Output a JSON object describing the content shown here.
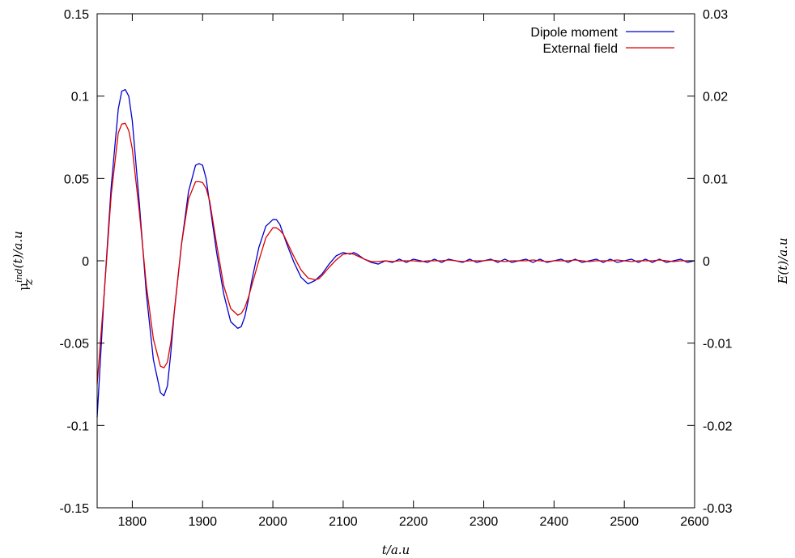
{
  "chart_data": {
    "type": "line",
    "title": "",
    "xlabel": "t/a.u",
    "ylabel": {
      "symbol": "μ",
      "sub": "z",
      "sup": "ind",
      "rest": "(t)/a.u"
    },
    "y2label": "E(t)/a.u",
    "xlim": [
      1750,
      2600
    ],
    "ylim": [
      -0.15,
      0.15
    ],
    "y2lim": [
      -0.03,
      0.03
    ],
    "xticks": [
      "1800",
      "1900",
      "2000",
      "2100",
      "2200",
      "2300",
      "2400",
      "2500",
      "2600"
    ],
    "yticks": [
      "-0.15",
      "-0.1",
      "-0.05",
      "0",
      "0.05",
      "0.1",
      "0.15"
    ],
    "y2ticks": [
      "-0.03",
      "-0.02",
      "-0.01",
      "0",
      "0.01",
      "0.02",
      "0.03"
    ],
    "grid": false,
    "legend_position": "top-right",
    "series": [
      {
        "name": "Dipole moment",
        "color": "#0000cc",
        "axis": "y",
        "x": [
          1750,
          1760,
          1770,
          1780,
          1785,
          1790,
          1795,
          1800,
          1810,
          1820,
          1830,
          1840,
          1845,
          1850,
          1855,
          1860,
          1870,
          1880,
          1890,
          1895,
          1900,
          1905,
          1910,
          1920,
          1930,
          1940,
          1950,
          1955,
          1960,
          1965,
          1970,
          1980,
          1990,
          2000,
          2005,
          2010,
          2015,
          2020,
          2030,
          2040,
          2050,
          2060,
          2065,
          2070,
          2080,
          2090,
          2100,
          2110,
          2115,
          2120,
          2130,
          2140,
          2150,
          2160,
          2170,
          2180,
          2190,
          2200,
          2210,
          2220,
          2230,
          2240,
          2250,
          2260,
          2270,
          2280,
          2290,
          2300,
          2310,
          2320,
          2330,
          2340,
          2350,
          2360,
          2370,
          2380,
          2390,
          2400,
          2410,
          2420,
          2430,
          2440,
          2450,
          2460,
          2470,
          2480,
          2490,
          2500,
          2510,
          2520,
          2530,
          2540,
          2550,
          2560,
          2570,
          2580,
          2590,
          2600
        ],
        "y": [
          -0.095,
          -0.02,
          0.045,
          0.092,
          0.103,
          0.104,
          0.1,
          0.085,
          0.035,
          -0.02,
          -0.06,
          -0.08,
          -0.082,
          -0.076,
          -0.055,
          -0.03,
          0.01,
          0.042,
          0.058,
          0.059,
          0.058,
          0.05,
          0.035,
          0.005,
          -0.02,
          -0.037,
          -0.041,
          -0.04,
          -0.034,
          -0.024,
          -0.012,
          0.008,
          0.021,
          0.025,
          0.025,
          0.022,
          0.016,
          0.01,
          -0.001,
          -0.01,
          -0.014,
          -0.012,
          -0.01,
          -0.008,
          -0.002,
          0.003,
          0.005,
          0.004,
          0.005,
          0.004,
          0.001,
          -0.001,
          -0.002,
          0.0,
          -0.001,
          0.001,
          -0.001,
          0.001,
          0.0,
          -0.001,
          0.001,
          -0.001,
          0.001,
          0.0,
          -0.001,
          0.001,
          -0.001,
          0.0,
          0.001,
          -0.001,
          0.001,
          -0.001,
          0.0,
          0.001,
          -0.001,
          0.001,
          -0.001,
          0.0,
          0.001,
          -0.001,
          0.001,
          -0.001,
          0.0,
          0.001,
          -0.001,
          0.001,
          -0.001,
          0.0,
          0.001,
          -0.001,
          0.001,
          -0.001,
          0.001,
          -0.001,
          0.0,
          0.001,
          -0.001,
          0.0
        ]
      },
      {
        "name": "External field",
        "color": "#dd0000",
        "axis": "y2",
        "x": [
          1750,
          1760,
          1770,
          1780,
          1785,
          1790,
          1795,
          1800,
          1810,
          1820,
          1830,
          1840,
          1845,
          1850,
          1855,
          1860,
          1870,
          1880,
          1890,
          1895,
          1900,
          1905,
          1910,
          1920,
          1930,
          1940,
          1950,
          1955,
          1960,
          1965,
          1970,
          1980,
          1990,
          2000,
          2005,
          2010,
          2015,
          2020,
          2030,
          2040,
          2050,
          2060,
          2065,
          2070,
          2080,
          2090,
          2100,
          2110,
          2115,
          2120,
          2130,
          2140,
          2150,
          2160,
          2170,
          2180,
          2190,
          2200,
          2210,
          2220,
          2230,
          2240,
          2250,
          2260,
          2270,
          2280,
          2290,
          2300,
          2310,
          2320,
          2330,
          2340,
          2350,
          2360,
          2370,
          2380,
          2390,
          2400,
          2410,
          2420,
          2430,
          2440,
          2450,
          2460,
          2470,
          2480,
          2490,
          2500,
          2510,
          2520,
          2530,
          2540,
          2550,
          2560,
          2570,
          2580,
          2590,
          2600
        ],
        "y": [
          -0.015,
          -0.004,
          0.008,
          0.0155,
          0.0166,
          0.0167,
          0.0158,
          0.0136,
          0.006,
          -0.003,
          -0.0095,
          -0.0128,
          -0.013,
          -0.0123,
          -0.0098,
          -0.006,
          0.002,
          0.0075,
          0.0096,
          0.0096,
          0.0095,
          0.0088,
          0.0073,
          0.002,
          -0.003,
          -0.0058,
          -0.0066,
          -0.0064,
          -0.0057,
          -0.0045,
          -0.003,
          0.0,
          0.0028,
          0.004,
          0.004,
          0.0037,
          0.0032,
          0.0023,
          0.0005,
          -0.0011,
          -0.0021,
          -0.0023,
          -0.0022,
          -0.0018,
          -0.0008,
          0.0001,
          0.0008,
          0.0009,
          0.0008,
          0.0006,
          0.0002,
          -0.0001,
          -0.0001,
          0.0,
          -0.0001,
          0.0,
          0.0,
          0.0,
          -0.0001,
          0.0,
          0.0,
          0.0,
          0.0001,
          0.0,
          -0.0001,
          0.0,
          0.0,
          0.0,
          0.0001,
          0.0,
          -0.0001,
          0.0,
          0.0,
          0.0,
          0.0001,
          0.0,
          -0.0001,
          0.0,
          0.0,
          0.0,
          0.0001,
          0.0,
          -0.0001,
          0.0,
          0.0,
          0.0,
          0.0001,
          0.0,
          -0.0001,
          0.0,
          0.0,
          0.0,
          0.0001,
          0.0,
          -0.0001,
          0.0,
          0.0,
          0.0
        ]
      }
    ]
  }
}
